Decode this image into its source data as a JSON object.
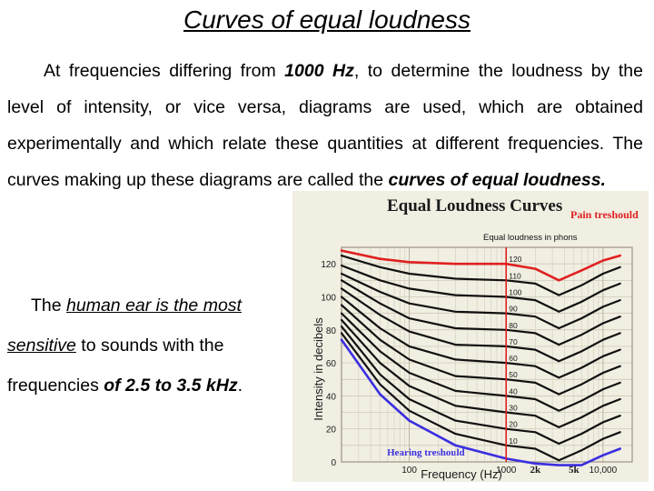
{
  "slide": {
    "title": "Curves of equal loudness",
    "para_1": "At frequencies differing from ",
    "para_hz": "1000 Hz",
    "para_2": ", to determine the loudness by the level of intensity, or vice versa, diagrams are used, which are obtained experimentally and which relate these quantities at different frequencies. The curves making up these diagrams are called the ",
    "para_term": "curves of equal loudness.",
    "tail_1": "The ",
    "tail_u1": "human ear is the most sensitive",
    "tail_2": " to sounds with the frequencies ",
    "tail_b1": "of 2.5 to 3.5 kHz",
    "tail_3": "."
  },
  "colors": {
    "paper": "#f1eee2",
    "curve": "#111111",
    "pain": "#e02020",
    "hearing": "#3a2ee0",
    "marker": "#e02020"
  },
  "chart_data": {
    "type": "line",
    "title": "Equal Loudness Curves",
    "xlabel": "Frequency (Hz)",
    "ylabel": "Intensity in decibels",
    "x_scale": "log",
    "xlim": [
      20,
      20000
    ],
    "ylim": [
      0,
      130
    ],
    "x_ticks": [
      100,
      1000,
      10000
    ],
    "x_tick_labels": [
      "100",
      "1000",
      "10,000"
    ],
    "extra_x_labels": [
      {
        "x": 2000,
        "label": "2k"
      },
      {
        "x": 5000,
        "label": "5k"
      }
    ],
    "y_ticks": [
      0,
      20,
      40,
      60,
      80,
      100,
      120
    ],
    "grid": true,
    "reference_line_x": 1000,
    "annotations": [
      {
        "text": "Pain treshould",
        "color": "#e02020"
      },
      {
        "text": "Equal loudness in phons",
        "color": "#111111"
      },
      {
        "text": "Hearing treshould",
        "color": "#3a2ee0"
      }
    ],
    "phon_labels": [
      "120",
      "110",
      "100",
      "90",
      "80",
      "70",
      "60",
      "50",
      "40",
      "30",
      "20",
      "10"
    ],
    "series": [
      {
        "name": "Pain treshould",
        "x": [
          20,
          50,
          100,
          300,
          1000,
          2000,
          3500,
          6000,
          10000,
          15000
        ],
        "y": [
          128,
          123,
          121,
          120,
          120,
          117,
          110,
          116,
          122,
          125
        ]
      },
      {
        "x": [
          20,
          50,
          100,
          300,
          1000,
          2000,
          3500,
          6000,
          10000,
          15000
        ],
        "y": [
          125,
          118,
          114,
          111,
          110,
          108,
          101,
          107,
          114,
          118
        ]
      },
      {
        "x": [
          20,
          50,
          100,
          300,
          1000,
          2000,
          3500,
          6000,
          10000,
          15000
        ],
        "y": [
          119,
          110,
          105,
          101,
          100,
          98,
          91,
          97,
          104,
          108
        ]
      },
      {
        "x": [
          20,
          50,
          100,
          300,
          1000,
          2000,
          3500,
          6000,
          10000,
          15000
        ],
        "y": [
          114,
          103,
          96,
          91,
          90,
          88,
          81,
          87,
          94,
          98
        ]
      },
      {
        "x": [
          20,
          50,
          100,
          300,
          1000,
          2000,
          3500,
          6000,
          10000,
          15000
        ],
        "y": [
          110,
          96,
          87,
          81,
          80,
          78,
          71,
          77,
          84,
          88
        ]
      },
      {
        "x": [
          20,
          50,
          100,
          300,
          1000,
          2000,
          3500,
          6000,
          10000,
          15000
        ],
        "y": [
          105,
          89,
          79,
          71,
          70,
          68,
          61,
          67,
          74,
          78
        ]
      },
      {
        "x": [
          20,
          50,
          100,
          300,
          1000,
          2000,
          3500,
          6000,
          10000,
          15000
        ],
        "y": [
          100,
          81,
          70,
          62,
          60,
          58,
          51,
          57,
          64,
          68
        ]
      },
      {
        "x": [
          20,
          50,
          100,
          300,
          1000,
          2000,
          3500,
          6000,
          10000,
          15000
        ],
        "y": [
          95,
          74,
          62,
          52,
          50,
          48,
          41,
          47,
          54,
          58
        ]
      },
      {
        "x": [
          20,
          50,
          100,
          300,
          1000,
          2000,
          3500,
          6000,
          10000,
          15000
        ],
        "y": [
          90,
          67,
          54,
          43,
          40,
          38,
          31,
          37,
          44,
          48
        ]
      },
      {
        "x": [
          20,
          50,
          100,
          300,
          1000,
          2000,
          3500,
          6000,
          10000,
          15000
        ],
        "y": [
          86,
          60,
          46,
          34,
          30,
          28,
          21,
          27,
          34,
          38
        ]
      },
      {
        "x": [
          20,
          50,
          100,
          300,
          1000,
          2000,
          3500,
          6000,
          10000,
          15000
        ],
        "y": [
          82,
          53,
          38,
          25,
          20,
          18,
          11,
          17,
          24,
          28
        ]
      },
      {
        "x": [
          20,
          50,
          100,
          300,
          1000,
          2000,
          3500,
          6000,
          10000,
          15000
        ],
        "y": [
          78,
          47,
          31,
          17,
          10,
          8,
          1,
          7,
          14,
          18
        ]
      },
      {
        "name": "Hearing treshould",
        "x": [
          20,
          50,
          100,
          300,
          1000,
          2000,
          3500,
          6000,
          10000,
          15000
        ],
        "y": [
          74,
          41,
          25,
          10,
          2,
          -1,
          -8,
          -3,
          4,
          8
        ]
      }
    ]
  }
}
